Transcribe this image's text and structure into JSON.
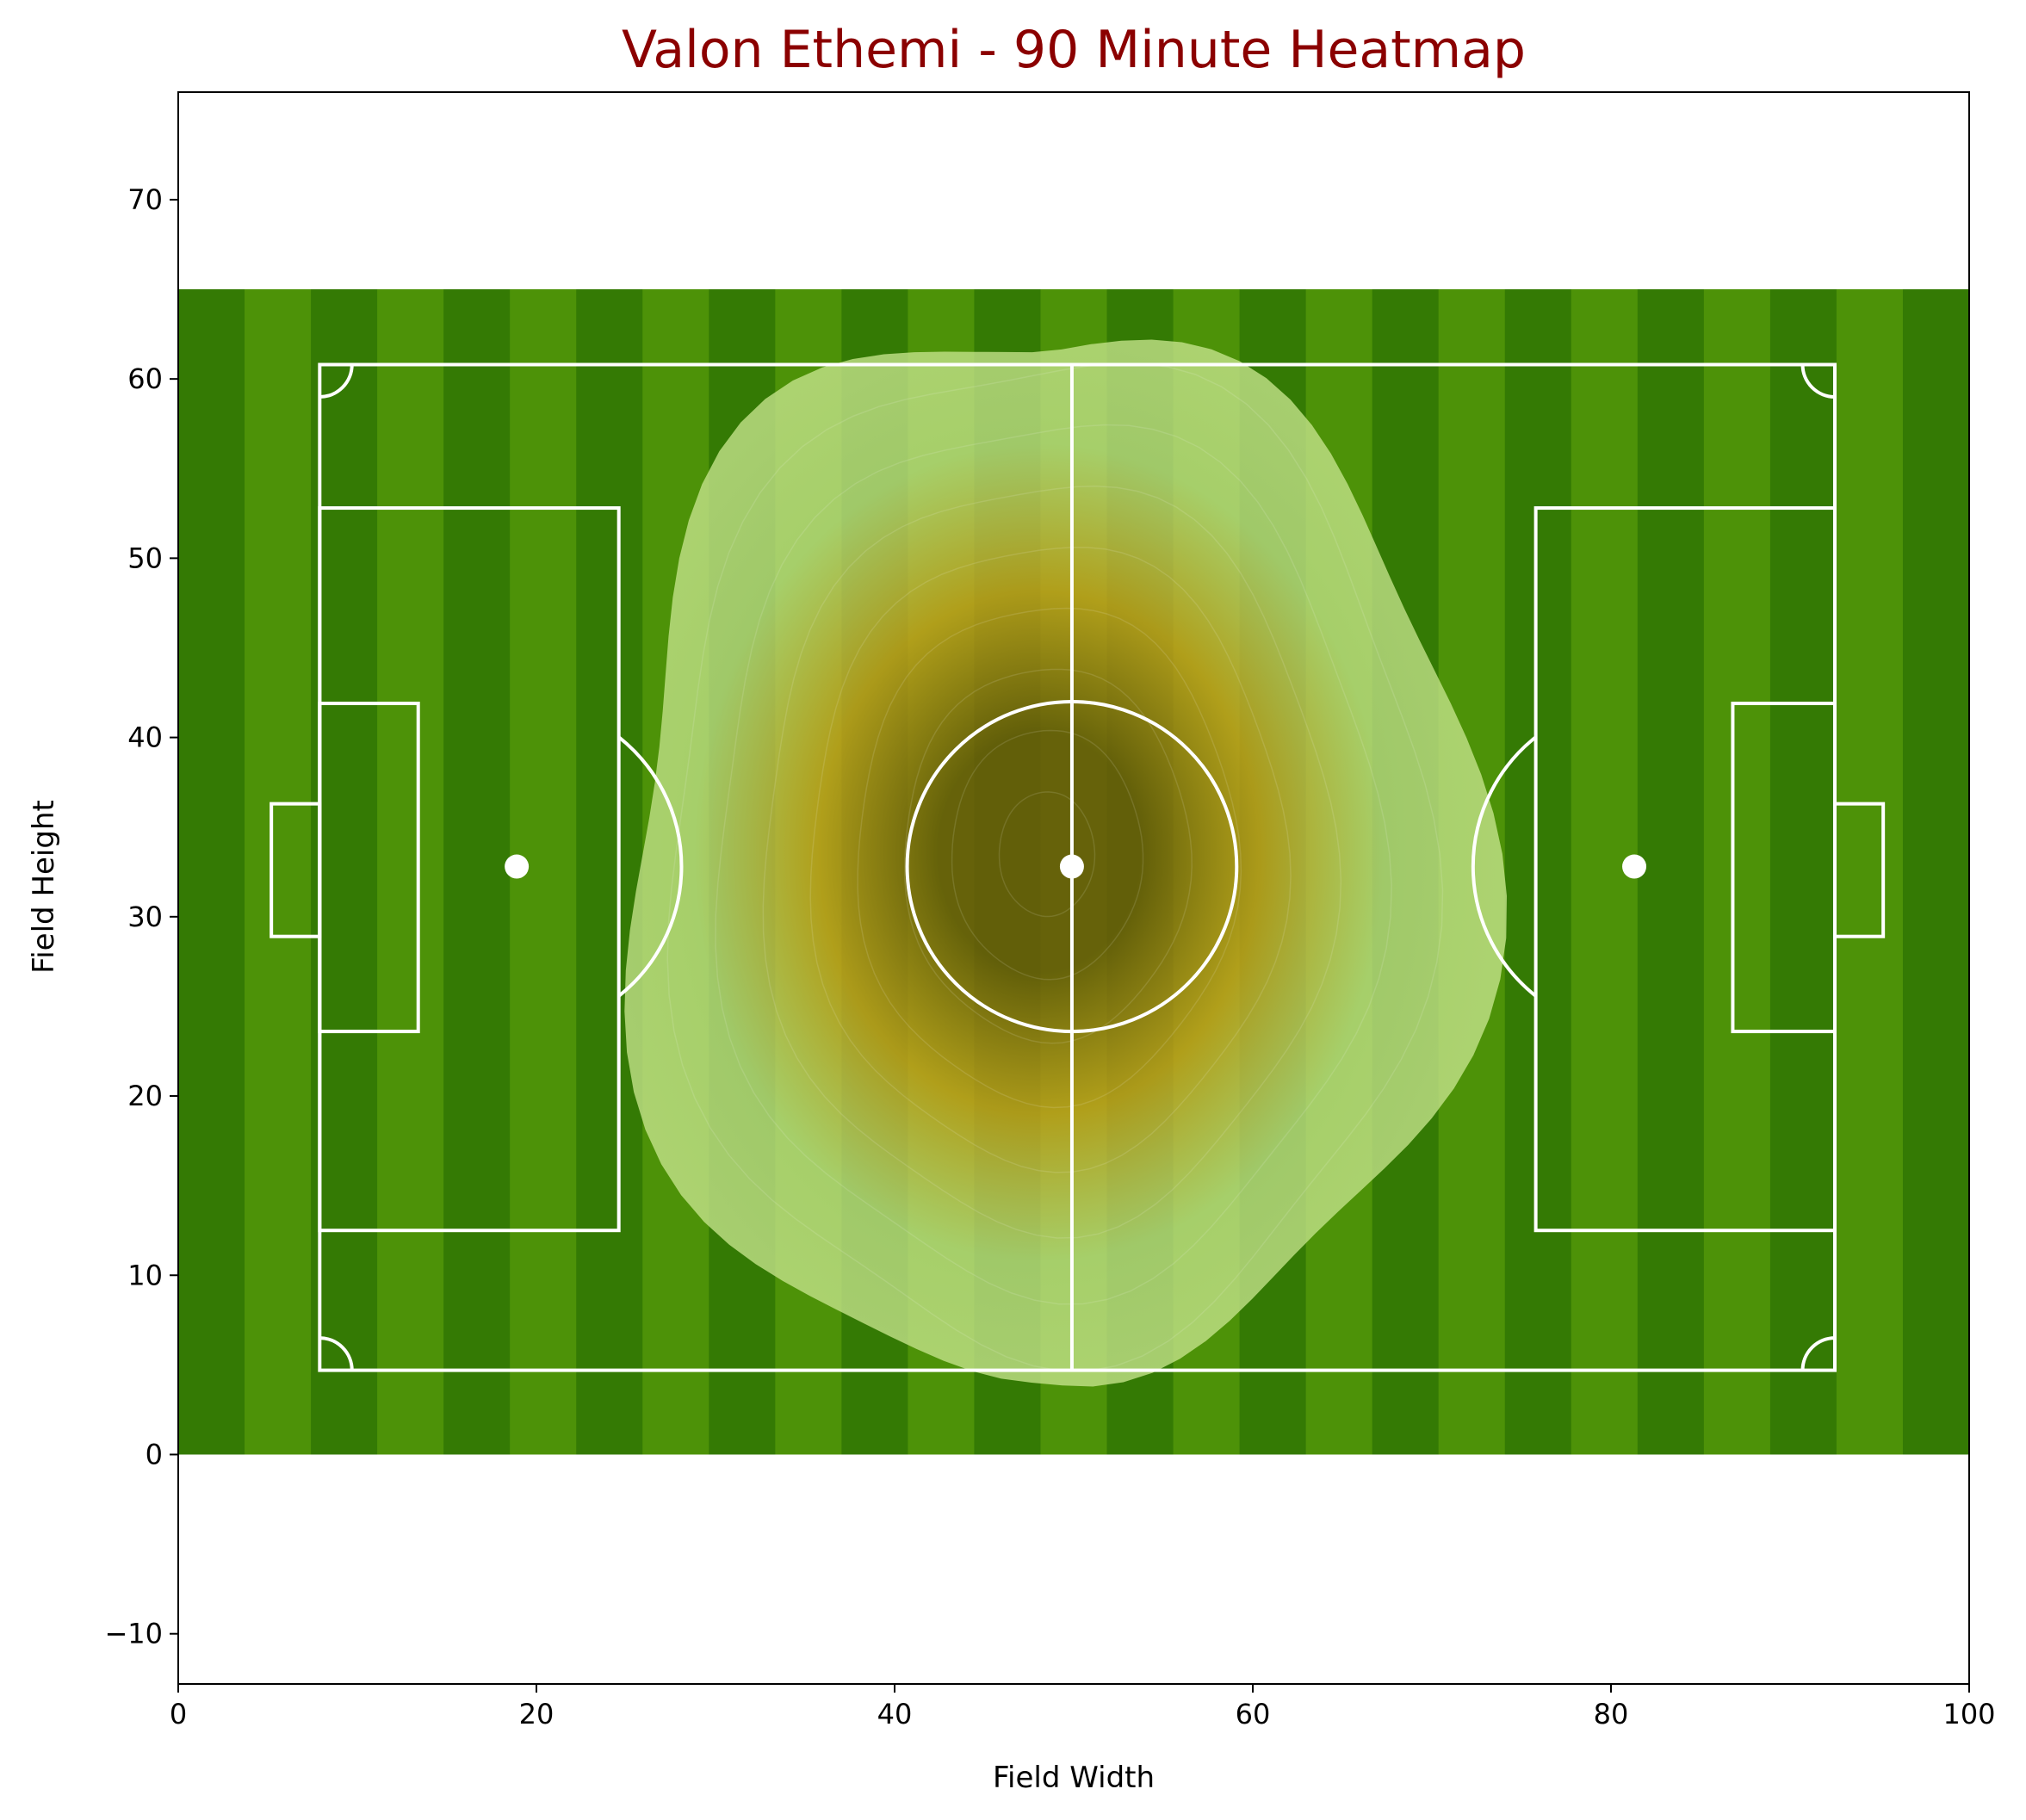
{
  "chart_data": {
    "type": "heatmap",
    "title": "Valon Ethemi - 90 Minute Heatmap",
    "xlabel": "Field Width",
    "ylabel": "Field Height",
    "xlim": [
      0,
      100
    ],
    "ylim": [
      -12.8,
      76
    ],
    "xticks": [
      0,
      20,
      40,
      60,
      80,
      100
    ],
    "yticks": [
      -10,
      0,
      10,
      20,
      30,
      40,
      50,
      60,
      70
    ],
    "pitch_extent": {
      "x": [
        0,
        100
      ],
      "y": [
        0,
        65
      ]
    },
    "density_peak": {
      "x": 48.5,
      "y": 33.5
    },
    "density_extent": {
      "x": [
        26,
        74
      ],
      "y": [
        2,
        64.5
      ]
    },
    "colors": {
      "title": "#8b0000",
      "pitch_dark": "#347a04",
      "pitch_light": "#4d9208",
      "lines": "#ffffff",
      "density_low": "#c4e38a",
      "density_mid": "#c9a21f",
      "density_high": "#6a5a0a"
    }
  }
}
